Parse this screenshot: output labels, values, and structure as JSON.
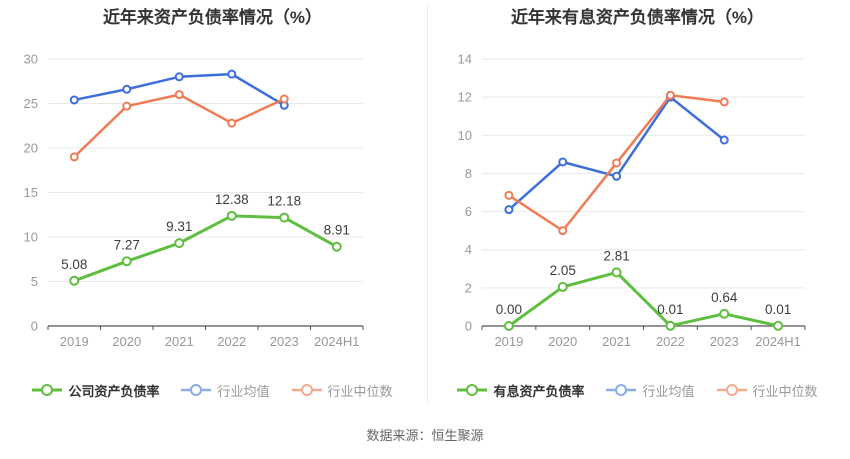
{
  "page": {
    "source_note": "数据来源：恒生聚源"
  },
  "colors": {
    "company_green": "#5FBE3F",
    "industry_avg_blue": "#3C6EDC",
    "industry_median_orange": "#EF7B55",
    "legend_blue_light": "#8AACE9",
    "legend_orange_light": "#F5A98F",
    "axis_label_gray": "#999999",
    "title_dark": "#333333",
    "gridline_gray": "#E9E9E9",
    "axis_line_dark": "#555555"
  },
  "chart_data": [
    {
      "type": "line",
      "title": "近年来资产负债率情况（%）",
      "categories": [
        "2019",
        "2020",
        "2021",
        "2022",
        "2023",
        "2024H1"
      ],
      "xlabel": "",
      "ylabel": "",
      "ylim": [
        0,
        30
      ],
      "ytick_step": 5,
      "grid": true,
      "legend_position": "bottom",
      "series": [
        {
          "name": "公司资产负债率",
          "color": "#5FBE3F",
          "legend_color": "#5FBE3F",
          "emphasis": true,
          "values": [
            5.08,
            7.27,
            9.31,
            12.38,
            12.18,
            8.91
          ],
          "labels": [
            "5.08",
            "7.27",
            "9.31",
            "12.38",
            "12.18",
            "8.91"
          ]
        },
        {
          "name": "行业均值",
          "color": "#3C6EDC",
          "legend_color": "#8AACE9",
          "emphasis": false,
          "values": [
            25.4,
            26.6,
            28.0,
            28.3,
            24.8,
            null
          ]
        },
        {
          "name": "行业中位数",
          "color": "#EF7B55",
          "legend_color": "#F5A98F",
          "emphasis": false,
          "values": [
            19.0,
            24.7,
            26.0,
            22.8,
            25.5,
            null
          ]
        }
      ]
    },
    {
      "type": "line",
      "title": "近年来有息资产负债率情况（%）",
      "categories": [
        "2019",
        "2020",
        "2021",
        "2022",
        "2023",
        "2024H1"
      ],
      "xlabel": "",
      "ylabel": "",
      "ylim": [
        0,
        14
      ],
      "ytick_step": 2,
      "grid": true,
      "legend_position": "bottom",
      "series": [
        {
          "name": "有息资产负债率",
          "color": "#5FBE3F",
          "legend_color": "#5FBE3F",
          "emphasis": true,
          "values": [
            0.0,
            2.05,
            2.81,
            0.01,
            0.64,
            0.01
          ],
          "labels": [
            "0.00",
            "2.05",
            "2.81",
            "0.01",
            "0.64",
            "0.01"
          ]
        },
        {
          "name": "行业均值",
          "color": "#3C6EDC",
          "legend_color": "#8AACE9",
          "emphasis": false,
          "values": [
            6.1,
            8.6,
            7.85,
            12.0,
            9.75,
            null
          ]
        },
        {
          "name": "行业中位数",
          "color": "#EF7B55",
          "legend_color": "#F5A98F",
          "emphasis": false,
          "values": [
            6.85,
            5.0,
            8.55,
            12.1,
            11.75,
            null
          ]
        }
      ]
    }
  ]
}
